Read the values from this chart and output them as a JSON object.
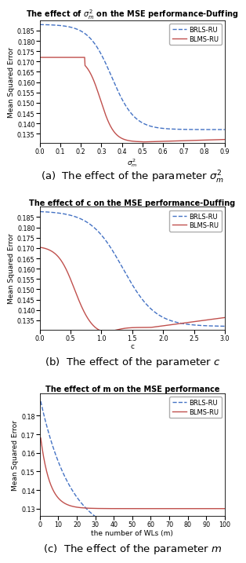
{
  "plot1": {
    "title": "The effect of $\\sigma_m^2$ on the MSE performance-Duffing",
    "xlabel": "$\\sigma_m^2$",
    "ylabel": "Mean Squared Error",
    "xlim": [
      0,
      0.9
    ],
    "ylim": [
      0.1305,
      0.19
    ],
    "yticks": [
      0.135,
      0.14,
      0.145,
      0.15,
      0.155,
      0.16,
      0.165,
      0.17,
      0.175,
      0.18,
      0.185
    ],
    "xticks": [
      0,
      0.1,
      0.2,
      0.3,
      0.4,
      0.5,
      0.6,
      0.7,
      0.8,
      0.9
    ],
    "caption_bold": "(a)",
    "caption_normal": "  The effect of the parameter $\\sigma_m^2$"
  },
  "plot2": {
    "title": "The effect of c on the MSE performance-Duffing",
    "xlabel": "c",
    "ylabel": "Mean Squared Error",
    "xlim": [
      0,
      3
    ],
    "ylim": [
      0.1305,
      0.19
    ],
    "yticks": [
      0.135,
      0.14,
      0.145,
      0.15,
      0.155,
      0.16,
      0.165,
      0.17,
      0.175,
      0.18,
      0.185
    ],
    "xticks": [
      0,
      0.5,
      1,
      1.5,
      2,
      2.5,
      3
    ],
    "caption_bold": "(b)",
    "caption_normal": "  The effect of the parameter $c$"
  },
  "plot3": {
    "title": "The effect of m on the MSE performance",
    "xlabel": "the number of WLs (m)",
    "ylabel": "Mean Squared Error",
    "xlim": [
      0,
      100
    ],
    "ylim": [
      0.126,
      0.192
    ],
    "yticks": [
      0.13,
      0.14,
      0.15,
      0.16,
      0.17,
      0.18
    ],
    "xticks": [
      0,
      10,
      20,
      30,
      40,
      50,
      60,
      70,
      80,
      90,
      100
    ],
    "caption_bold": "(c)",
    "caption_normal": "  The effect of the parameter $m$"
  },
  "brls_color": "#4472C4",
  "blms_color": "#C0504D",
  "title_fontsize": 7.0,
  "label_fontsize": 6.5,
  "tick_fontsize": 5.8,
  "legend_fontsize": 6.0,
  "caption_fontsize": 9.5
}
